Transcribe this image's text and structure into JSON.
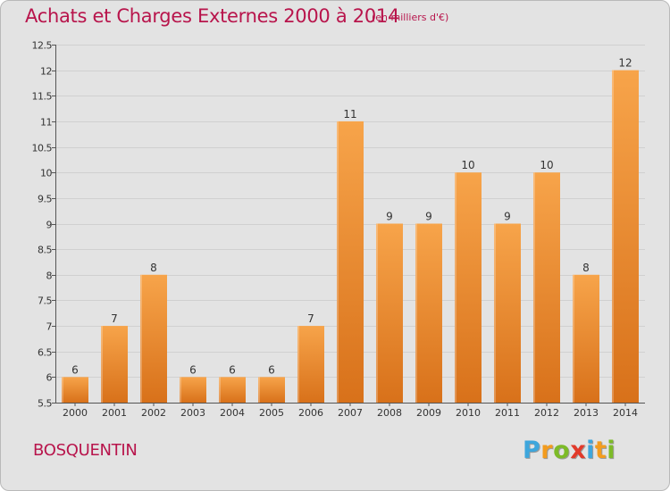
{
  "header": {
    "title": "Achats et Charges Externes 2000 à 2014",
    "subtitle": "(en milliers d'€)"
  },
  "footer": {
    "commune": "BOSQUENTIN",
    "logo_letters": [
      "P",
      "r",
      "o",
      "x",
      "i",
      "t",
      "i"
    ],
    "logo_colors": [
      "#3ea6dc",
      "#f39c1e",
      "#7dbb28",
      "#e23a2a",
      "#3ea6dc",
      "#f39c1e",
      "#7dbb28"
    ]
  },
  "colors": {
    "bar_light": "#f7a44a",
    "bar_dark": "#d8711a",
    "axis": "#555555",
    "grid": "#d0d0d0",
    "tick_text": "#333333"
  },
  "chart_data": {
    "type": "bar",
    "categories": [
      "2000",
      "2001",
      "2002",
      "2003",
      "2004",
      "2005",
      "2006",
      "2007",
      "2008",
      "2009",
      "2010",
      "2011",
      "2012",
      "2013",
      "2014"
    ],
    "values": [
      6,
      7,
      8,
      6,
      6,
      6,
      7,
      11,
      9,
      9,
      10,
      9,
      10,
      8,
      12
    ],
    "ylim": [
      5.5,
      12.5
    ],
    "yticks": [
      5.5,
      6,
      6.5,
      7,
      7.5,
      8,
      8.5,
      9,
      9.5,
      10,
      10.5,
      11,
      11.5,
      12,
      12.5
    ],
    "ytick_labels": [
      "5.5",
      "6",
      "6.5",
      "7",
      "7.5",
      "8",
      "8.5",
      "9",
      "9.5",
      "10",
      "10.5",
      "11",
      "11.5",
      "12",
      "12.5"
    ],
    "grid": true,
    "show_value_labels": true
  }
}
